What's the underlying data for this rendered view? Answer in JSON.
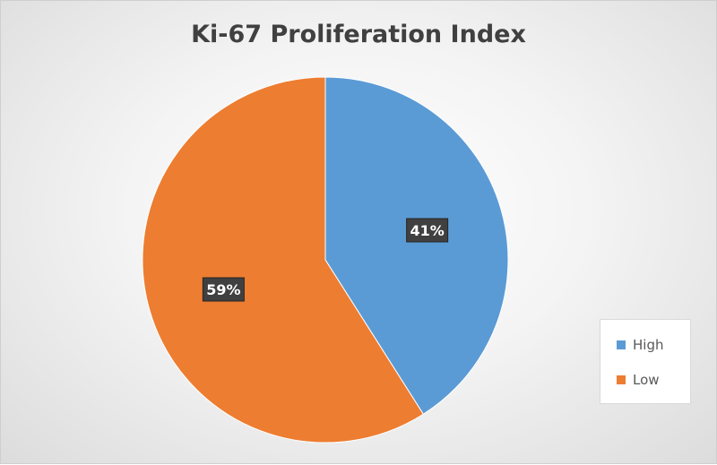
{
  "chart_data": {
    "type": "pie",
    "title": "Ki-67 Proliferation Index",
    "categories": [
      "High",
      "Low"
    ],
    "values": [
      41,
      59
    ],
    "labels": [
      "41%",
      "59%"
    ],
    "colors": [
      "#5b9bd5",
      "#ed7d31"
    ],
    "start_angle": "12 o'clock, clockwise",
    "legend_position": "bottom-right"
  }
}
